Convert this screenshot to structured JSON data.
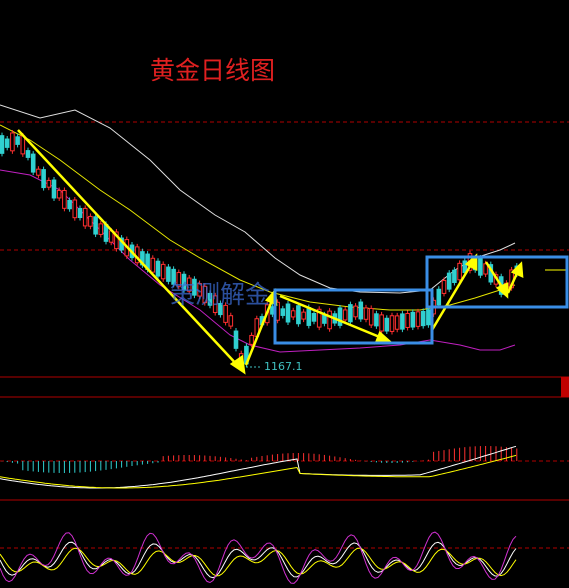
{
  "chart_data": {
    "type": "candlestick",
    "title": "黄金日线图",
    "watermark": "策测解金",
    "annotations": [
      "1167.1"
    ]
  }
}
